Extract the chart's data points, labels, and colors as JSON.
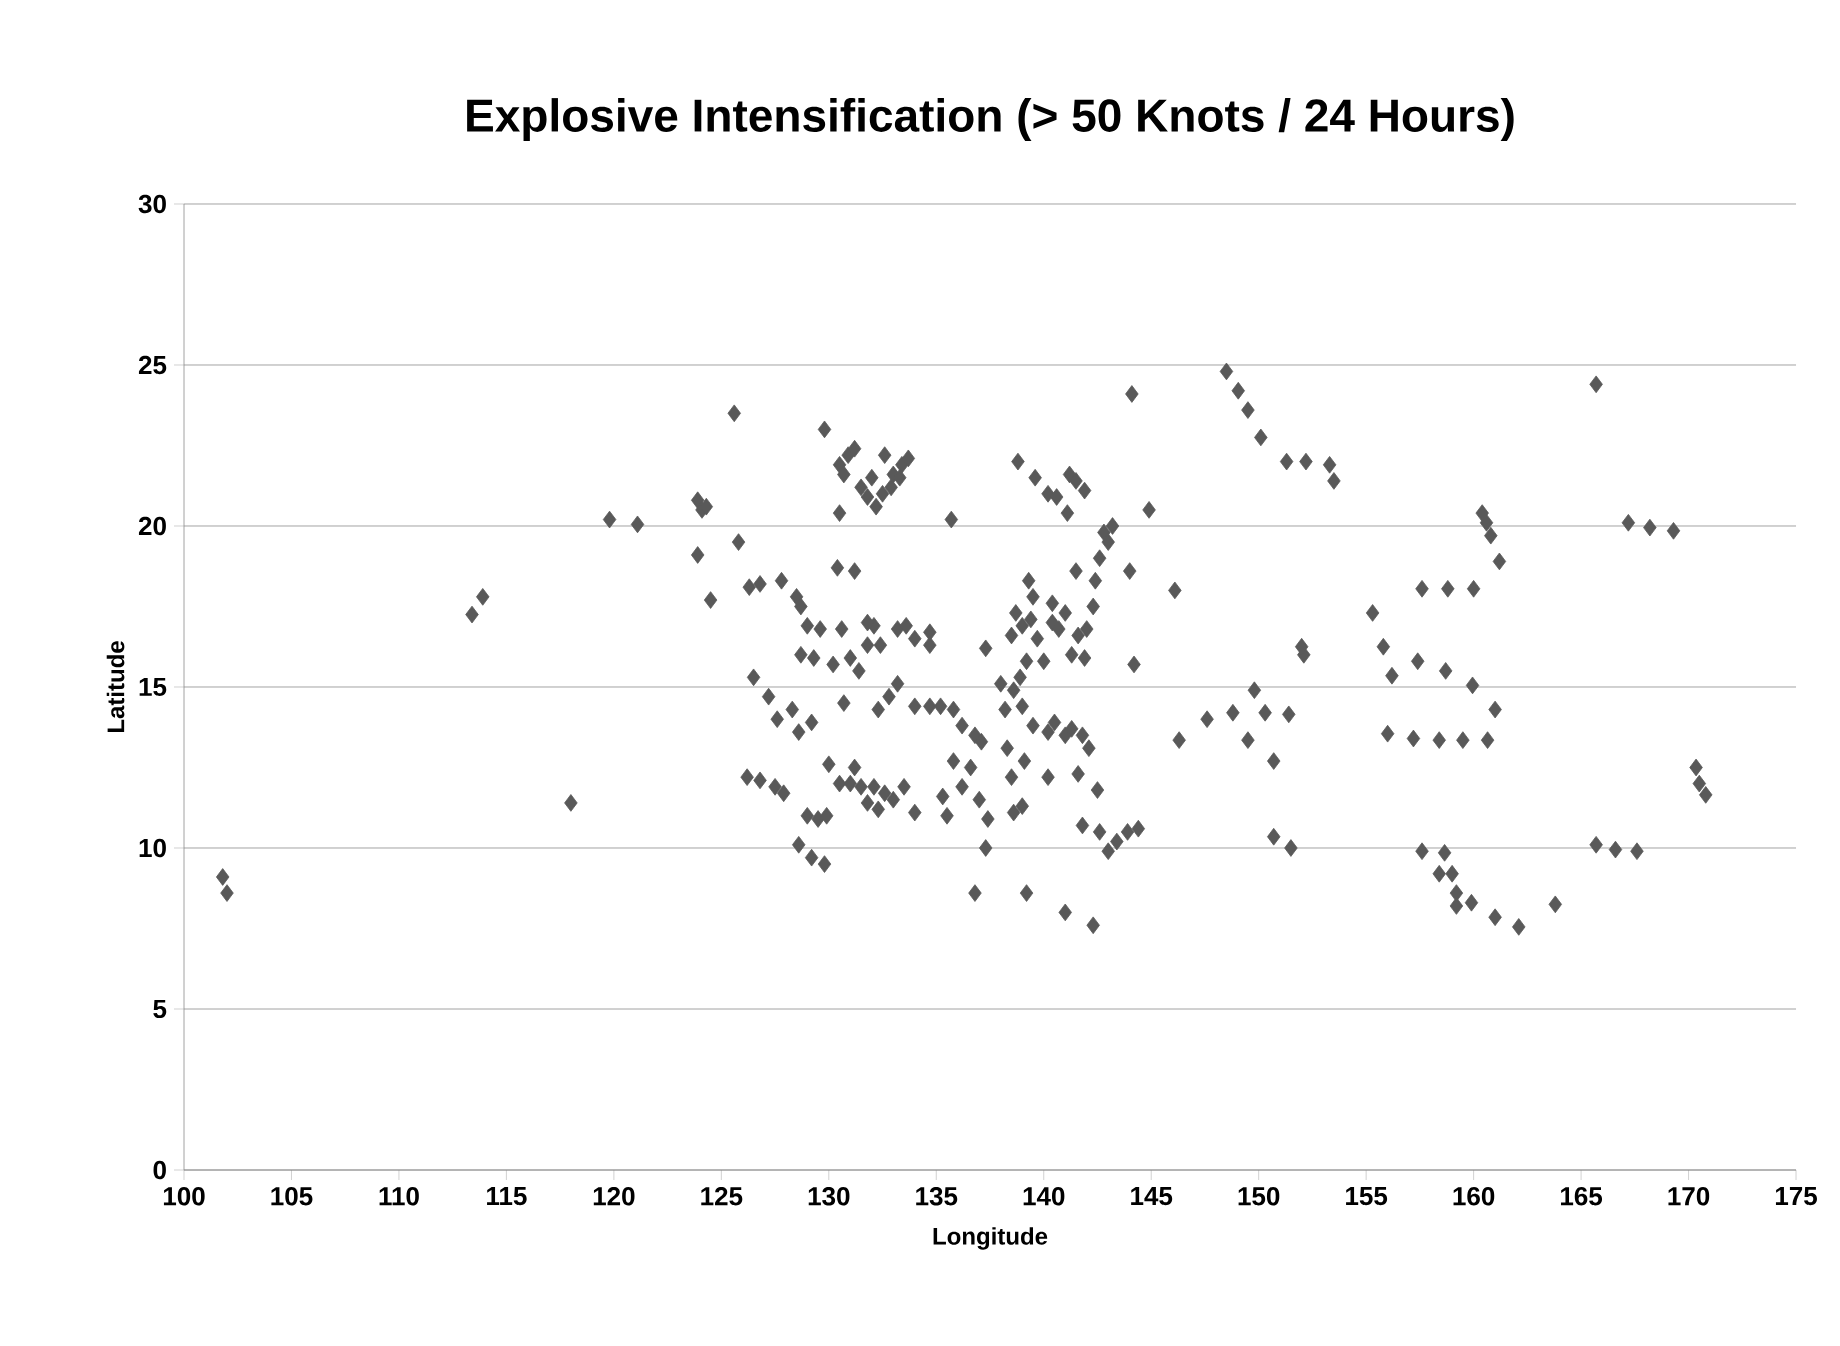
{
  "chart_data": {
    "type": "scatter",
    "title": "Explosive Intensification (> 50 Knots / 24 Hours)",
    "xlabel": "Longitude",
    "ylabel": "Latitude",
    "marker": "diamond",
    "grid": "y",
    "color": "#595959",
    "xlim": [
      100,
      175
    ],
    "ylim": [
      0,
      30
    ],
    "xticks": [
      100,
      105,
      110,
      115,
      120,
      125,
      130,
      135,
      140,
      145,
      150,
      155,
      160,
      165,
      170,
      175
    ],
    "yticks": [
      0,
      5,
      10,
      15,
      20,
      25,
      30
    ],
    "x": [
      101.8,
      102.0,
      113.4,
      113.9,
      118.0,
      119.8,
      121.1,
      123.9,
      124.1,
      124.3,
      123.9,
      124.5,
      125.6,
      125.8,
      126.3,
      126.8,
      127.8,
      126.5,
      127.2,
      127.6,
      128.3,
      128.5,
      128.7,
      129.0,
      128.7,
      129.3,
      129.6,
      130.2,
      130.6,
      131.0,
      131.4,
      131.8,
      132.1,
      132.4,
      133.2,
      133.6,
      134.0,
      131.8,
      130.4,
      131.2,
      128.6,
      129.2,
      126.2,
      126.8,
      127.5,
      127.9,
      128.6,
      129.2,
      129.8,
      129.0,
      129.5,
      129.9,
      130.0,
      130.5,
      131.2,
      131.5,
      131.8,
      132.1,
      132.3,
      132.6,
      133.0,
      133.5,
      134.0,
      131.0,
      130.7,
      132.3,
      132.8,
      133.2,
      134.0,
      134.7,
      135.2,
      135.8,
      136.2,
      136.8,
      134.7,
      134.7,
      135.7,
      129.8,
      130.5,
      130.9,
      131.2,
      130.7,
      131.5,
      131.8,
      132.0,
      132.2,
      132.5,
      132.9,
      132.6,
      133.0,
      133.4,
      133.7,
      130.5,
      133.3,
      135.3,
      135.8,
      135.5,
      136.2,
      136.6,
      137.0,
      137.4,
      137.3,
      137.1,
      137.3,
      136.8,
      138.2,
      138.6,
      138.9,
      139.2,
      138.5,
      139.0,
      139.4,
      139.7,
      140.0,
      139.5,
      139.3,
      138.7,
      140.4,
      140.7,
      141.0,
      141.3,
      141.6,
      142.0,
      142.3,
      142.6,
      142.8,
      143.2,
      143.0,
      141.1,
      138.8,
      139.6,
      140.2,
      140.6,
      141.2,
      141.5,
      141.9,
      142.4,
      141.5,
      140.4,
      141.9,
      144.0,
      144.2,
      144.9,
      144.1,
      146.1,
      139.0,
      139.5,
      140.2,
      140.5,
      141.0,
      141.3,
      141.8,
      142.1,
      138.3,
      139.1,
      140.2,
      141.6,
      142.5,
      141.8,
      142.6,
      143.0,
      143.4,
      143.9,
      144.4,
      139.0,
      138.6,
      142.3,
      141.0,
      139.2,
      138.0,
      138.5,
      148.5,
      149.05,
      149.5,
      150.1,
      151.3,
      152.2,
      153.3,
      153.5,
      152.1,
      152.0,
      149.8,
      148.8,
      147.6,
      150.3,
      151.4,
      149.5,
      150.7,
      146.3,
      150.7,
      151.5,
      165.7,
      160.4,
      160.6,
      160.8,
      161.2,
      167.2,
      168.2,
      169.3,
      157.6,
      158.8,
      160.0,
      155.3,
      155.8,
      156.2,
      157.4,
      158.7,
      159.95,
      161.0,
      156.0,
      157.2,
      158.4,
      159.5,
      160.65,
      170.35,
      170.5,
      170.8,
      157.6,
      158.65,
      158.4,
      159.0,
      159.2,
      159.2,
      159.9,
      161.0,
      162.1,
      163.8,
      165.7,
      166.6,
      167.6
    ],
    "values": [
      9.1,
      8.6,
      17.25,
      17.8,
      11.4,
      20.2,
      20.05,
      20.8,
      20.5,
      20.6,
      19.1,
      17.7,
      23.5,
      19.5,
      18.1,
      18.2,
      18.3,
      15.3,
      14.7,
      14.0,
      14.3,
      17.8,
      17.5,
      16.9,
      16.0,
      15.9,
      16.8,
      15.7,
      16.8,
      15.9,
      15.5,
      16.3,
      16.9,
      16.3,
      16.8,
      16.9,
      16.5,
      17.0,
      18.7,
      18.6,
      13.6,
      13.9,
      12.2,
      12.1,
      11.9,
      11.7,
      10.1,
      9.7,
      9.5,
      11.0,
      10.9,
      11.0,
      12.6,
      12.0,
      12.5,
      11.9,
      11.4,
      11.9,
      11.2,
      11.7,
      11.5,
      11.9,
      11.1,
      12.0,
      14.5,
      14.3,
      14.7,
      15.1,
      14.4,
      14.4,
      14.4,
      14.3,
      13.8,
      13.5,
      16.3,
      16.7,
      20.2,
      23.0,
      21.9,
      22.2,
      22.4,
      21.6,
      21.2,
      20.9,
      21.5,
      20.6,
      21.0,
      21.2,
      22.2,
      21.6,
      21.9,
      22.1,
      20.4,
      21.5,
      11.6,
      12.7,
      11.0,
      11.9,
      12.5,
      11.5,
      10.9,
      10.0,
      13.3,
      16.2,
      8.6,
      14.3,
      14.9,
      15.3,
      15.8,
      16.6,
      16.9,
      17.1,
      16.5,
      15.8,
      17.8,
      18.3,
      17.3,
      17.0,
      16.8,
      17.3,
      16.0,
      16.6,
      16.8,
      17.5,
      19.0,
      19.8,
      20.0,
      19.5,
      20.4,
      22.0,
      21.5,
      21.0,
      20.9,
      21.6,
      21.4,
      21.1,
      18.3,
      18.6,
      17.6,
      15.9,
      18.6,
      15.7,
      20.5,
      24.1,
      18.0,
      14.4,
      13.8,
      13.6,
      13.9,
      13.5,
      13.7,
      13.5,
      13.1,
      13.1,
      12.7,
      12.2,
      12.3,
      11.8,
      10.7,
      10.5,
      9.9,
      10.2,
      10.5,
      10.6,
      11.3,
      11.1,
      7.6,
      8.0,
      8.6,
      15.1,
      12.2,
      24.8,
      24.2,
      23.6,
      22.75,
      22.0,
      22.0,
      21.9,
      21.4,
      16.0,
      16.25,
      14.9,
      14.2,
      14.0,
      14.2,
      14.15,
      13.35,
      12.7,
      13.35,
      10.35,
      10.0,
      24.4,
      20.4,
      20.1,
      19.7,
      18.9,
      20.1,
      19.95,
      19.85,
      18.05,
      18.05,
      18.05,
      17.3,
      16.25,
      15.35,
      15.8,
      15.5,
      15.05,
      14.3,
      13.55,
      13.4,
      13.35,
      13.35,
      13.35,
      12.5,
      12.0,
      11.65,
      9.9,
      9.85,
      9.2,
      9.2,
      8.6,
      8.2,
      8.3,
      7.85,
      7.55,
      8.25,
      10.1,
      9.95,
      9.9
    ]
  }
}
